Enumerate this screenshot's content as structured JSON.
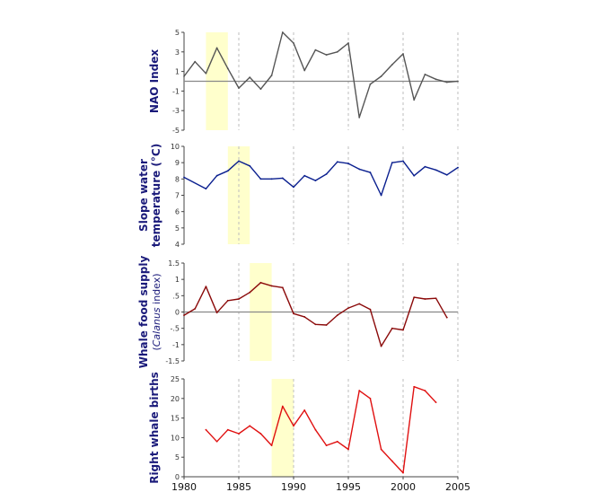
{
  "chart_data": [
    {
      "type": "line",
      "ylabel": "NAO Index",
      "ylim": [
        -5,
        5
      ],
      "yticks": [
        -5,
        -3,
        -1,
        1,
        3,
        5
      ],
      "zero_line": true,
      "line_color": "#555555",
      "highlight": [
        1982,
        1984
      ],
      "points": [
        [
          1980,
          0.5
        ],
        [
          1981,
          2.0
        ],
        [
          1982,
          0.8
        ],
        [
          1983,
          3.4
        ],
        [
          1984,
          1.3
        ],
        [
          1985,
          -0.7
        ],
        [
          1986,
          0.4
        ],
        [
          1987,
          -0.8
        ],
        [
          1988,
          0.6
        ],
        [
          1989,
          5.0
        ],
        [
          1990,
          3.9
        ],
        [
          1991,
          1.1
        ],
        [
          1992,
          3.2
        ],
        [
          1993,
          2.7
        ],
        [
          1994,
          3.0
        ],
        [
          1995,
          3.9
        ],
        [
          1996,
          -3.7
        ],
        [
          1997,
          -0.3
        ],
        [
          1998,
          0.5
        ],
        [
          1999,
          1.7
        ],
        [
          2000,
          2.8
        ],
        [
          2001,
          -1.9
        ],
        [
          2002,
          0.7
        ],
        [
          2003,
          0.2
        ],
        [
          2004,
          -0.1
        ],
        [
          2005,
          0.0
        ]
      ]
    },
    {
      "type": "line",
      "ylabel": "Slope water",
      "ylabel2": "temperature (°C)",
      "ylim": [
        4,
        10
      ],
      "yticks": [
        4,
        5,
        6,
        7,
        8,
        9,
        10
      ],
      "zero_line": false,
      "line_color": "#0a1f8f",
      "highlight": [
        1984,
        1986
      ],
      "points": [
        [
          1980,
          8.1
        ],
        [
          1982,
          7.4
        ],
        [
          1983,
          8.2
        ],
        [
          1984,
          8.5
        ],
        [
          1985,
          9.1
        ],
        [
          1986,
          8.8
        ],
        [
          1987,
          8.0
        ],
        [
          1988,
          8.0
        ],
        [
          1989,
          8.05
        ],
        [
          1990,
          7.5
        ],
        [
          1991,
          8.2
        ],
        [
          1992,
          7.9
        ],
        [
          1993,
          8.3
        ],
        [
          1994,
          9.05
        ],
        [
          1995,
          8.95
        ],
        [
          1996,
          8.6
        ],
        [
          1997,
          8.4
        ],
        [
          1998,
          7.0
        ],
        [
          1999,
          9.0
        ],
        [
          2000,
          9.1
        ],
        [
          2001,
          8.2
        ],
        [
          2002,
          8.75
        ],
        [
          2003,
          8.55
        ],
        [
          2004,
          8.25
        ],
        [
          2005,
          8.7
        ]
      ]
    },
    {
      "type": "line",
      "ylabel": "Whale food supply",
      "ylabel2": "(Calanus index)",
      "ylim": [
        -1.5,
        1.5
      ],
      "yticks": [
        -1.5,
        -1,
        -0.5,
        0,
        0.5,
        1,
        1.5
      ],
      "zero_line": true,
      "line_color": "#8b0a0a",
      "highlight": [
        1986,
        1988
      ],
      "points": [
        [
          1980,
          -0.1
        ],
        [
          1981,
          0.1
        ],
        [
          1982,
          0.78
        ],
        [
          1983,
          -0.02
        ],
        [
          1984,
          0.35
        ],
        [
          1985,
          0.4
        ],
        [
          1986,
          0.6
        ],
        [
          1987,
          0.9
        ],
        [
          1988,
          0.8
        ],
        [
          1989,
          0.75
        ],
        [
          1990,
          -0.05
        ],
        [
          1991,
          -0.15
        ],
        [
          1992,
          -0.38
        ],
        [
          1993,
          -0.4
        ],
        [
          1994,
          -0.1
        ],
        [
          1995,
          0.12
        ],
        [
          1996,
          0.25
        ],
        [
          1997,
          0.08
        ],
        [
          1998,
          -1.05
        ],
        [
          1999,
          -0.5
        ],
        [
          2000,
          -0.55
        ],
        [
          2001,
          0.45
        ],
        [
          2002,
          0.4
        ],
        [
          2003,
          0.42
        ],
        [
          2004,
          -0.17
        ]
      ]
    },
    {
      "type": "line",
      "ylabel": "Right whale births",
      "ylim": [
        0,
        25
      ],
      "yticks": [
        0,
        5,
        10,
        15,
        20,
        25
      ],
      "zero_line": false,
      "line_color": "#e01010",
      "highlight": [
        1988,
        1990
      ],
      "points": [
        [
          1982,
          12
        ],
        [
          1983,
          9
        ],
        [
          1984,
          12
        ],
        [
          1985,
          11
        ],
        [
          1986,
          13
        ],
        [
          1987,
          11
        ],
        [
          1988,
          8
        ],
        [
          1989,
          18
        ],
        [
          1990,
          13
        ],
        [
          1991,
          17
        ],
        [
          1992,
          12
        ],
        [
          1993,
          8
        ],
        [
          1994,
          9
        ],
        [
          1995,
          7
        ],
        [
          1996,
          22
        ],
        [
          1997,
          20
        ],
        [
          1998,
          7
        ],
        [
          1999,
          4
        ],
        [
          2000,
          1
        ],
        [
          2001,
          23
        ],
        [
          2002,
          22
        ],
        [
          2003,
          19
        ]
      ]
    }
  ],
  "xaxis": {
    "xlim": [
      1980,
      2005
    ],
    "ticks": [
      1980,
      1985,
      1990,
      1995,
      2000,
      2005
    ]
  },
  "colors": {
    "highlight": "#ffffcc",
    "gridline": "#bdbdbd",
    "axis": "#444444"
  }
}
